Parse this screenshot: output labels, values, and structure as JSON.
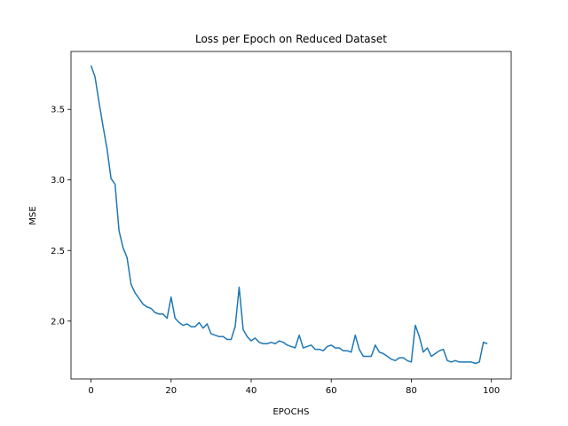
{
  "chart_data": {
    "type": "line",
    "title": "Loss per Epoch on Reduced Dataset",
    "xlabel": "EPOCHS",
    "ylabel": "MSE",
    "xlim": [
      -5,
      104.95
    ],
    "ylim": [
      1.59,
      3.91
    ],
    "grid": false,
    "x_ticks": [
      0,
      20,
      40,
      60,
      80,
      100
    ],
    "x_tick_labels": [
      "0",
      "20",
      "40",
      "60",
      "80",
      "100"
    ],
    "y_ticks": [
      2.0,
      2.5,
      3.0,
      3.5
    ],
    "y_tick_labels": [
      "2.0",
      "2.5",
      "3.0",
      "3.5"
    ],
    "series": [
      {
        "color": "#1f77b4",
        "x": [
          0,
          1,
          2,
          3,
          4,
          5,
          6,
          7,
          8,
          9,
          10,
          11,
          12,
          13,
          14,
          15,
          16,
          17,
          18,
          19,
          20,
          21,
          22,
          23,
          24,
          25,
          26,
          27,
          28,
          29,
          30,
          31,
          32,
          33,
          34,
          35,
          36,
          37,
          38,
          39,
          40,
          41,
          42,
          43,
          44,
          45,
          46,
          47,
          48,
          49,
          50,
          51,
          52,
          53,
          54,
          55,
          56,
          57,
          58,
          59,
          60,
          61,
          62,
          63,
          64,
          65,
          66,
          67,
          68,
          69,
          70,
          71,
          72,
          73,
          74,
          75,
          76,
          77,
          78,
          79,
          80,
          81,
          82,
          83,
          84,
          85,
          86,
          87,
          88,
          89,
          90,
          91,
          92,
          93,
          94,
          95,
          96,
          97,
          98,
          99
        ],
        "y": [
          3.81,
          3.73,
          3.55,
          3.38,
          3.22,
          3.01,
          2.97,
          2.64,
          2.52,
          2.45,
          2.26,
          2.2,
          2.16,
          2.12,
          2.1,
          2.09,
          2.06,
          2.05,
          2.05,
          2.02,
          2.17,
          2.02,
          1.99,
          1.97,
          1.98,
          1.96,
          1.96,
          1.99,
          1.95,
          1.98,
          1.91,
          1.9,
          1.89,
          1.89,
          1.87,
          1.87,
          1.96,
          2.24,
          1.94,
          1.89,
          1.86,
          1.88,
          1.85,
          1.84,
          1.84,
          1.85,
          1.84,
          1.86,
          1.85,
          1.83,
          1.82,
          1.81,
          1.9,
          1.81,
          1.82,
          1.83,
          1.8,
          1.8,
          1.79,
          1.82,
          1.83,
          1.81,
          1.81,
          1.79,
          1.79,
          1.78,
          1.9,
          1.8,
          1.75,
          1.75,
          1.75,
          1.83,
          1.78,
          1.77,
          1.75,
          1.73,
          1.72,
          1.74,
          1.74,
          1.72,
          1.71,
          1.97,
          1.89,
          1.78,
          1.81,
          1.75,
          1.77,
          1.79,
          1.8,
          1.72,
          1.71,
          1.72,
          1.71,
          1.71,
          1.71,
          1.71,
          1.7,
          1.71,
          1.85,
          1.84
        ]
      }
    ]
  }
}
